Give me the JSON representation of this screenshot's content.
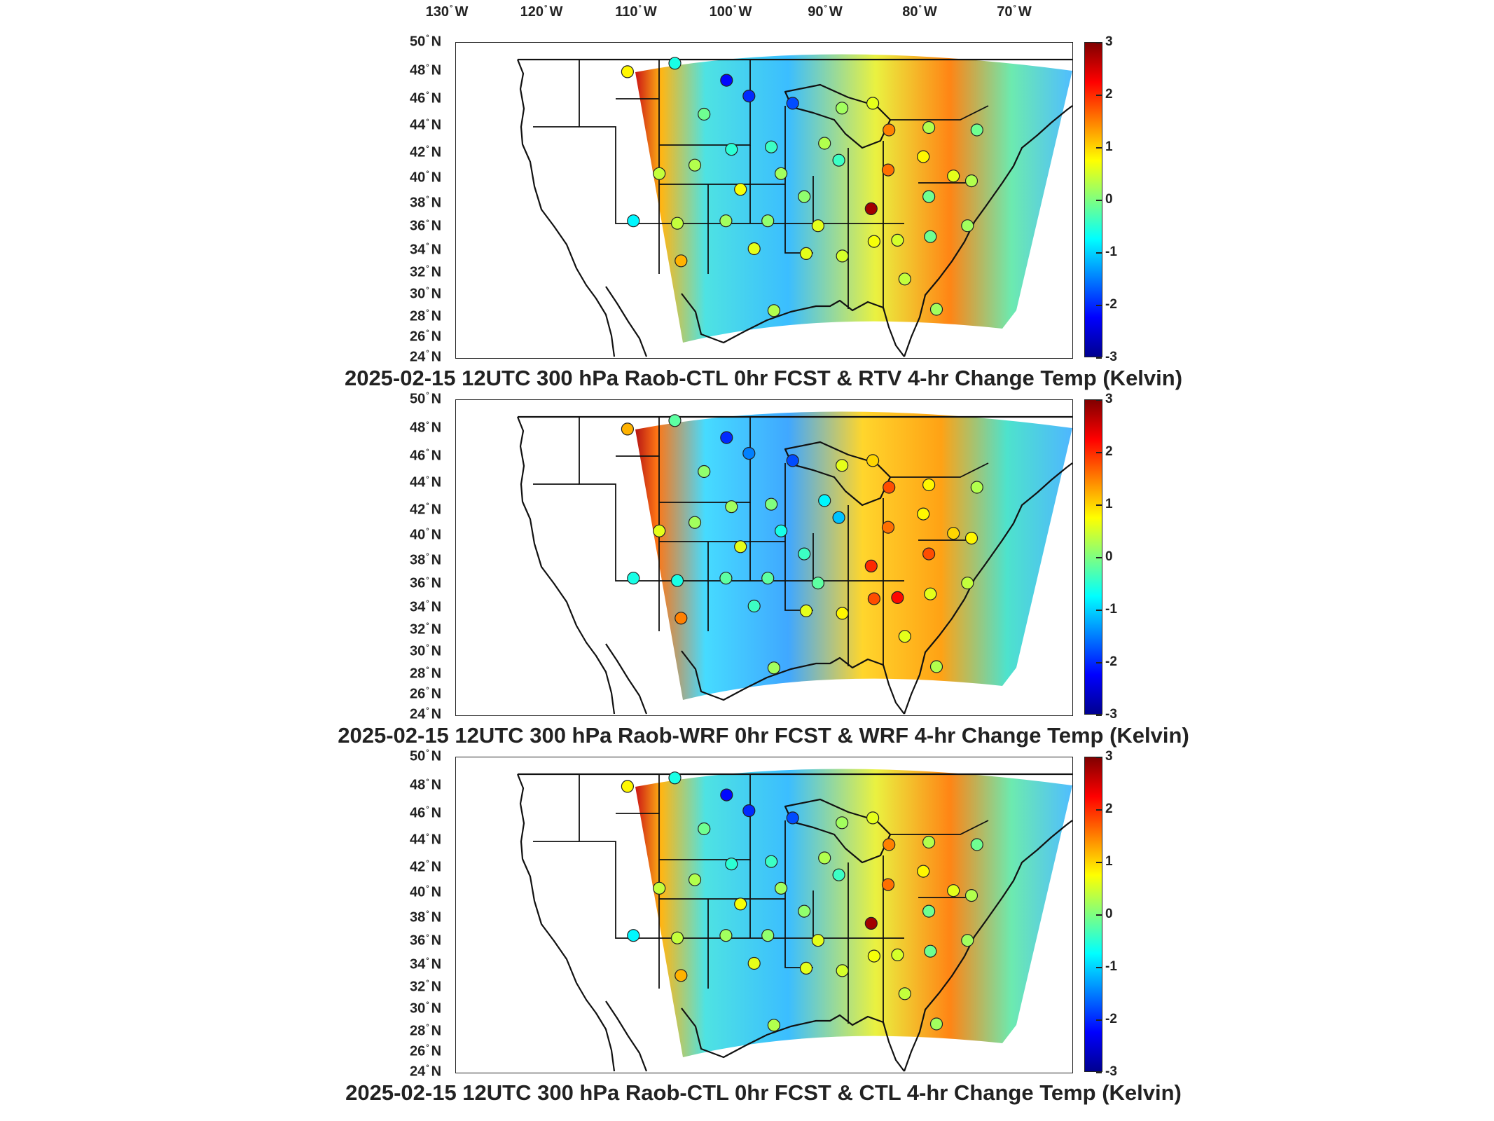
{
  "longitude_labels": [
    "130",
    "120",
    "110",
    "100",
    "90",
    "80",
    "70"
  ],
  "longitude_suffix": "W",
  "latitude_labels": [
    "50",
    "48",
    "46",
    "44",
    "42",
    "40",
    "38",
    "36",
    "34",
    "32",
    "30",
    "28",
    "26",
    "24"
  ],
  "latitude_suffix": "N",
  "colorbar": {
    "ticks": [
      "3",
      "2",
      "1",
      "0",
      "-1",
      "-2",
      "-3"
    ],
    "range": [
      -3,
      3
    ],
    "colormap": [
      "#00008f",
      "#0000ff",
      "#00ffff",
      "#ffff00",
      "#ff0000",
      "#800000"
    ]
  },
  "panels": [
    {
      "title": "2025-02-15 12UTC 300 hPa Raob-CTL 0hr FCST & RTV 4-hr Change Temp (Kelvin)",
      "stations": [
        {
          "lon": -112.0,
          "lat": 47.5,
          "value": 0.8
        },
        {
          "lon": -106.6,
          "lat": 48.2,
          "value": -0.6
        },
        {
          "lon": -100.8,
          "lat": 46.8,
          "value": -2.2
        },
        {
          "lon": -98.4,
          "lat": 45.5,
          "value": -2.0
        },
        {
          "lon": -93.6,
          "lat": 44.9,
          "value": -1.8
        },
        {
          "lon": -103.5,
          "lat": 44.0,
          "value": -0.1
        },
        {
          "lon": -100.7,
          "lat": 41.1,
          "value": -0.5
        },
        {
          "lon": -96.4,
          "lat": 41.3,
          "value": -0.4
        },
        {
          "lon": -88.2,
          "lat": 44.5,
          "value": 0.2
        },
        {
          "lon": -84.7,
          "lat": 44.9,
          "value": 0.6
        },
        {
          "lon": -83.4,
          "lat": 42.7,
          "value": 1.5
        },
        {
          "lon": -79.0,
          "lat": 42.9,
          "value": 0.3
        },
        {
          "lon": -73.8,
          "lat": 42.7,
          "value": -0.1
        },
        {
          "lon": -90.6,
          "lat": 41.6,
          "value": 0.3
        },
        {
          "lon": -89.3,
          "lat": 40.2,
          "value": -0.4
        },
        {
          "lon": -84.2,
          "lat": 39.4,
          "value": 1.6
        },
        {
          "lon": -80.2,
          "lat": 40.5,
          "value": 0.8
        },
        {
          "lon": -77.4,
          "lat": 38.9,
          "value": 0.6
        },
        {
          "lon": -75.6,
          "lat": 38.5,
          "value": 0.3
        },
        {
          "lon": -108.5,
          "lat": 39.1,
          "value": 0.4
        },
        {
          "lon": -104.7,
          "lat": 39.8,
          "value": 0.3
        },
        {
          "lon": -100.0,
          "lat": 37.8,
          "value": 0.7
        },
        {
          "lon": -95.6,
          "lat": 39.1,
          "value": 0.2
        },
        {
          "lon": -93.4,
          "lat": 37.2,
          "value": 0.1
        },
        {
          "lon": -86.6,
          "lat": 36.2,
          "value": 2.8
        },
        {
          "lon": -80.4,
          "lat": 37.2,
          "value": -0.1
        },
        {
          "lon": -111.2,
          "lat": 35.2,
          "value": -0.8
        },
        {
          "lon": -106.7,
          "lat": 35.0,
          "value": 0.4
        },
        {
          "lon": -101.7,
          "lat": 35.2,
          "value": 0.2
        },
        {
          "lon": -97.4,
          "lat": 35.2,
          "value": 0.1
        },
        {
          "lon": -92.3,
          "lat": 34.8,
          "value": 0.6
        },
        {
          "lon": -86.8,
          "lat": 33.5,
          "value": 0.7
        },
        {
          "lon": -84.4,
          "lat": 33.6,
          "value": 0.5
        },
        {
          "lon": -81.0,
          "lat": 33.9,
          "value": -0.1
        },
        {
          "lon": -77.0,
          "lat": 34.8,
          "value": 0.2
        },
        {
          "lon": -106.4,
          "lat": 31.9,
          "value": 1.2
        },
        {
          "lon": -99.0,
          "lat": 32.9,
          "value": 0.6
        },
        {
          "lon": -93.8,
          "lat": 32.5,
          "value": 0.6
        },
        {
          "lon": -90.2,
          "lat": 32.3,
          "value": 0.5
        },
        {
          "lon": -84.3,
          "lat": 30.4,
          "value": 0.4
        },
        {
          "lon": -97.5,
          "lat": 27.8,
          "value": 0.3
        },
        {
          "lon": -81.7,
          "lat": 27.9,
          "value": 0.2
        }
      ]
    },
    {
      "title": "2025-02-15 12UTC 300 hPa Raob-WRF 0hr FCST & WRF 4-hr Change Temp (Kelvin)",
      "stations": [
        {
          "lon": -112.0,
          "lat": 47.5,
          "value": 1.2
        },
        {
          "lon": -106.6,
          "lat": 48.2,
          "value": -0.2
        },
        {
          "lon": -100.8,
          "lat": 46.8,
          "value": -2.0
        },
        {
          "lon": -98.4,
          "lat": 45.5,
          "value": -1.5
        },
        {
          "lon": -93.6,
          "lat": 44.9,
          "value": -1.8
        },
        {
          "lon": -103.5,
          "lat": 44.0,
          "value": 0.1
        },
        {
          "lon": -100.7,
          "lat": 41.1,
          "value": 0.2
        },
        {
          "lon": -96.4,
          "lat": 41.3,
          "value": 0.0
        },
        {
          "lon": -88.2,
          "lat": 44.5,
          "value": 0.6
        },
        {
          "lon": -84.7,
          "lat": 44.9,
          "value": 1.0
        },
        {
          "lon": -83.4,
          "lat": 42.7,
          "value": 1.8
        },
        {
          "lon": -79.0,
          "lat": 42.9,
          "value": 0.8
        },
        {
          "lon": -73.8,
          "lat": 42.7,
          "value": 0.3
        },
        {
          "lon": -90.6,
          "lat": 41.6,
          "value": -0.8
        },
        {
          "lon": -89.3,
          "lat": 40.2,
          "value": -1.1
        },
        {
          "lon": -84.2,
          "lat": 39.4,
          "value": 1.6
        },
        {
          "lon": -80.2,
          "lat": 40.5,
          "value": 0.8
        },
        {
          "lon": -77.4,
          "lat": 38.9,
          "value": 1.0
        },
        {
          "lon": -75.6,
          "lat": 38.5,
          "value": 0.8
        },
        {
          "lon": -108.5,
          "lat": 39.1,
          "value": 0.6
        },
        {
          "lon": -104.7,
          "lat": 39.8,
          "value": 0.2
        },
        {
          "lon": -100.0,
          "lat": 37.8,
          "value": 0.6
        },
        {
          "lon": -95.6,
          "lat": 39.1,
          "value": -0.6
        },
        {
          "lon": -93.4,
          "lat": 37.2,
          "value": -0.4
        },
        {
          "lon": -86.6,
          "lat": 36.2,
          "value": 2.0
        },
        {
          "lon": -80.4,
          "lat": 37.2,
          "value": 1.8
        },
        {
          "lon": -111.2,
          "lat": 35.2,
          "value": -0.6
        },
        {
          "lon": -106.7,
          "lat": 35.0,
          "value": -0.6
        },
        {
          "lon": -101.7,
          "lat": 35.2,
          "value": -0.2
        },
        {
          "lon": -97.4,
          "lat": 35.2,
          "value": -0.2
        },
        {
          "lon": -92.3,
          "lat": 34.8,
          "value": -0.2
        },
        {
          "lon": -86.8,
          "lat": 33.5,
          "value": 1.8
        },
        {
          "lon": -84.4,
          "lat": 33.6,
          "value": 2.2
        },
        {
          "lon": -81.0,
          "lat": 33.9,
          "value": 0.6
        },
        {
          "lon": -77.0,
          "lat": 34.8,
          "value": 0.4
        },
        {
          "lon": -106.4,
          "lat": 31.9,
          "value": 1.5
        },
        {
          "lon": -99.0,
          "lat": 32.9,
          "value": -0.4
        },
        {
          "lon": -93.8,
          "lat": 32.5,
          "value": 0.6
        },
        {
          "lon": -90.2,
          "lat": 32.3,
          "value": 0.8
        },
        {
          "lon": -84.3,
          "lat": 30.4,
          "value": 0.6
        },
        {
          "lon": -97.5,
          "lat": 27.8,
          "value": 0.2
        },
        {
          "lon": -81.7,
          "lat": 27.9,
          "value": 0.3
        }
      ]
    },
    {
      "title": "2025-02-15 12UTC 300 hPa Raob-CTL 0hr FCST & CTL 4-hr Change Temp (Kelvin)",
      "stations": [
        {
          "lon": -112.0,
          "lat": 47.5,
          "value": 0.8
        },
        {
          "lon": -106.6,
          "lat": 48.2,
          "value": -0.6
        },
        {
          "lon": -100.8,
          "lat": 46.8,
          "value": -2.2
        },
        {
          "lon": -98.4,
          "lat": 45.5,
          "value": -2.0
        },
        {
          "lon": -93.6,
          "lat": 44.9,
          "value": -1.8
        },
        {
          "lon": -103.5,
          "lat": 44.0,
          "value": -0.1
        },
        {
          "lon": -100.7,
          "lat": 41.1,
          "value": -0.5
        },
        {
          "lon": -96.4,
          "lat": 41.3,
          "value": -0.4
        },
        {
          "lon": -88.2,
          "lat": 44.5,
          "value": 0.2
        },
        {
          "lon": -84.7,
          "lat": 44.9,
          "value": 0.6
        },
        {
          "lon": -83.4,
          "lat": 42.7,
          "value": 1.5
        },
        {
          "lon": -79.0,
          "lat": 42.9,
          "value": 0.3
        },
        {
          "lon": -73.8,
          "lat": 42.7,
          "value": -0.1
        },
        {
          "lon": -90.6,
          "lat": 41.6,
          "value": 0.3
        },
        {
          "lon": -89.3,
          "lat": 40.2,
          "value": -0.4
        },
        {
          "lon": -84.2,
          "lat": 39.4,
          "value": 1.6
        },
        {
          "lon": -80.2,
          "lat": 40.5,
          "value": 0.8
        },
        {
          "lon": -77.4,
          "lat": 38.9,
          "value": 0.6
        },
        {
          "lon": -75.6,
          "lat": 38.5,
          "value": 0.3
        },
        {
          "lon": -108.5,
          "lat": 39.1,
          "value": 0.4
        },
        {
          "lon": -104.7,
          "lat": 39.8,
          "value": 0.3
        },
        {
          "lon": -100.0,
          "lat": 37.8,
          "value": 0.7
        },
        {
          "lon": -95.6,
          "lat": 39.1,
          "value": 0.2
        },
        {
          "lon": -93.4,
          "lat": 37.2,
          "value": 0.1
        },
        {
          "lon": -86.6,
          "lat": 36.2,
          "value": 2.8
        },
        {
          "lon": -80.4,
          "lat": 37.2,
          "value": -0.1
        },
        {
          "lon": -111.2,
          "lat": 35.2,
          "value": -0.8
        },
        {
          "lon": -106.7,
          "lat": 35.0,
          "value": 0.4
        },
        {
          "lon": -101.7,
          "lat": 35.2,
          "value": 0.2
        },
        {
          "lon": -97.4,
          "lat": 35.2,
          "value": 0.1
        },
        {
          "lon": -92.3,
          "lat": 34.8,
          "value": 0.6
        },
        {
          "lon": -86.8,
          "lat": 33.5,
          "value": 0.7
        },
        {
          "lon": -84.4,
          "lat": 33.6,
          "value": 0.5
        },
        {
          "lon": -81.0,
          "lat": 33.9,
          "value": -0.1
        },
        {
          "lon": -77.0,
          "lat": 34.8,
          "value": 0.2
        },
        {
          "lon": -106.4,
          "lat": 31.9,
          "value": 1.2
        },
        {
          "lon": -99.0,
          "lat": 32.9,
          "value": 0.6
        },
        {
          "lon": -93.8,
          "lat": 32.5,
          "value": 0.6
        },
        {
          "lon": -90.2,
          "lat": 32.3,
          "value": 0.5
        },
        {
          "lon": -84.3,
          "lat": 30.4,
          "value": 0.4
        },
        {
          "lon": -97.5,
          "lat": 27.8,
          "value": 0.3
        },
        {
          "lon": -81.7,
          "lat": 27.9,
          "value": 0.2
        }
      ]
    }
  ]
}
